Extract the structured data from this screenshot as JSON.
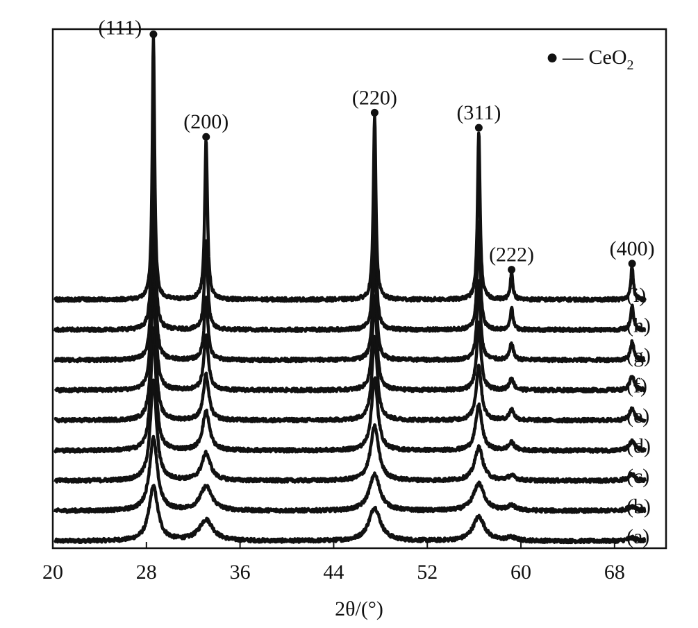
{
  "chart_data": {
    "type": "line",
    "xlabel": "2θ/(°)",
    "xlim": [
      20,
      72.4
    ],
    "x_ticks": [
      20,
      28,
      36,
      44,
      52,
      60,
      68
    ],
    "legend": {
      "marker": "●",
      "text": "— CeO",
      "subscript": "2",
      "placement": "top-right"
    },
    "peaks": [
      {
        "label": "(111)",
        "two_theta": 28.6,
        "top_height": 8.7
      },
      {
        "label": "(200)",
        "two_theta": 33.1,
        "top_height": 5.3
      },
      {
        "label": "(220)",
        "two_theta": 47.5,
        "top_height": 6.1
      },
      {
        "label": "(311)",
        "two_theta": 56.4,
        "top_height": 5.6
      },
      {
        "label": "(222)",
        "two_theta": 59.2,
        "top_height": 0.9
      },
      {
        "label": "(400)",
        "two_theta": 69.5,
        "top_height": 1.1
      }
    ],
    "series": [
      {
        "name": "(a)",
        "offset": 0.0,
        "heights": [
          1.8,
          0.7,
          1.1,
          0.8,
          0.1,
          0.1
        ],
        "widths": [
          0.45,
          0.7,
          0.6,
          0.6,
          0.5,
          0.5
        ]
      },
      {
        "name": "(b)",
        "offset": 1.0,
        "heights": [
          2.4,
          0.8,
          1.2,
          0.9,
          0.15,
          0.15
        ],
        "widths": [
          0.4,
          0.6,
          0.55,
          0.55,
          0.45,
          0.45
        ]
      },
      {
        "name": "(c)",
        "offset": 2.0,
        "heights": [
          3.3,
          0.9,
          1.8,
          1.1,
          0.15,
          0.2
        ],
        "widths": [
          0.32,
          0.45,
          0.42,
          0.42,
          0.4,
          0.4
        ]
      },
      {
        "name": "(d)",
        "offset": 3.0,
        "heights": [
          4.0,
          1.3,
          2.4,
          1.5,
          0.25,
          0.3
        ],
        "widths": [
          0.26,
          0.35,
          0.32,
          0.32,
          0.3,
          0.3
        ]
      },
      {
        "name": "(e)",
        "offset": 4.0,
        "heights": [
          4.6,
          1.5,
          2.8,
          1.8,
          0.35,
          0.4
        ],
        "widths": [
          0.22,
          0.28,
          0.27,
          0.27,
          0.25,
          0.25
        ]
      },
      {
        "name": "(f)",
        "offset": 5.0,
        "heights": [
          5.3,
          1.8,
          3.1,
          2.2,
          0.4,
          0.5
        ],
        "widths": [
          0.19,
          0.23,
          0.22,
          0.22,
          0.21,
          0.21
        ]
      },
      {
        "name": "(g)",
        "offset": 6.0,
        "heights": [
          6.2,
          2.1,
          3.6,
          2.6,
          0.55,
          0.6
        ],
        "widths": [
          0.16,
          0.19,
          0.18,
          0.18,
          0.18,
          0.18
        ]
      },
      {
        "name": "(h)",
        "offset": 7.0,
        "heights": [
          7.0,
          3.0,
          4.4,
          3.6,
          0.7,
          0.8
        ],
        "widths": [
          0.14,
          0.16,
          0.15,
          0.15,
          0.15,
          0.15
        ]
      },
      {
        "name": "(i)",
        "offset": 8.0,
        "heights": [
          8.7,
          5.3,
          6.1,
          5.6,
          0.9,
          1.1
        ],
        "widths": [
          0.12,
          0.14,
          0.13,
          0.13,
          0.13,
          0.13
        ]
      }
    ]
  }
}
